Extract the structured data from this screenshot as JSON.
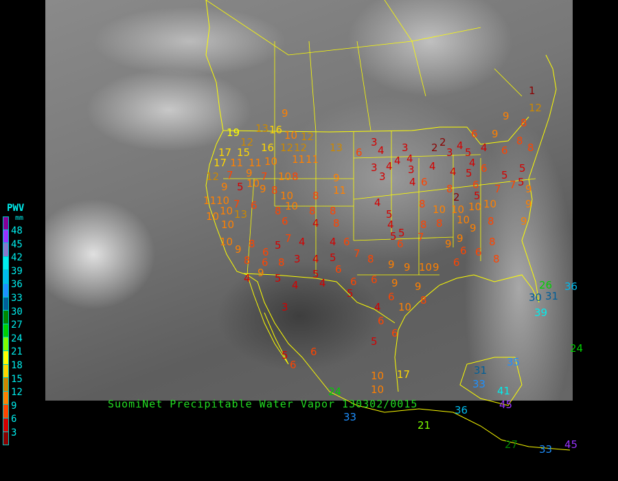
{
  "title": "SuomiNet Precipitable Water Vapor 130302/0015",
  "legend": {
    "title": "PWV",
    "unit": "mm",
    "labels": [
      "48",
      "45",
      "42",
      "39",
      "36",
      "33",
      "30",
      "27",
      "24",
      "21",
      "18",
      "15",
      "12",
      "9",
      "6",
      "3"
    ],
    "colors": [
      "#880099",
      "#9933ff",
      "#8877cc",
      "#00eeee",
      "#00bbee",
      "#1e90ff",
      "#005f99",
      "#008800",
      "#00d000",
      "#7fff00",
      "#ffff00",
      "#ffd700",
      "#cc8800",
      "#ff8000",
      "#ff4400",
      "#d40000",
      "#8b0000"
    ]
  },
  "stations": [
    9,
    19,
    13,
    16,
    10,
    12,
    12,
    16,
    12,
    12,
    13,
    17,
    15,
    17,
    11,
    11,
    10,
    11,
    11,
    12,
    7,
    9,
    10,
    7,
    10,
    8,
    9,
    9,
    5,
    9,
    8,
    10,
    8,
    11,
    11,
    10,
    7,
    6,
    8,
    10,
    8,
    8,
    10,
    10,
    10,
    13,
    6,
    4,
    8,
    10,
    9,
    8,
    6,
    5,
    7,
    4,
    4,
    6,
    8,
    6,
    8,
    3,
    4,
    5,
    7,
    8,
    9,
    4,
    5,
    4,
    5,
    4,
    6,
    6,
    6,
    5,
    9,
    9,
    9,
    10,
    9,
    9,
    6,
    4,
    10,
    3,
    6,
    6,
    5,
    6,
    5,
    6,
    10,
    10,
    17,
    21,
    31,
    33,
    35,
    41,
    45,
    36,
    33,
    24,
    26,
    30,
    31,
    36,
    39,
    24,
    27,
    33,
    45,
    3,
    6,
    4,
    3,
    4,
    3,
    4,
    4,
    3,
    3,
    4,
    4,
    6,
    2,
    2,
    3,
    4,
    5,
    4,
    4,
    5,
    6,
    9,
    4,
    6,
    6,
    8,
    8,
    9,
    1,
    12,
    8,
    5,
    5,
    6,
    8,
    7,
    7,
    5,
    9,
    5,
    2,
    8,
    10,
    10,
    10,
    10,
    4,
    5,
    4,
    6,
    5,
    5,
    8,
    7,
    8,
    10,
    9,
    8,
    9,
    9,
    9,
    9,
    6,
    6,
    8,
    8,
    6,
    8
  ]
}
